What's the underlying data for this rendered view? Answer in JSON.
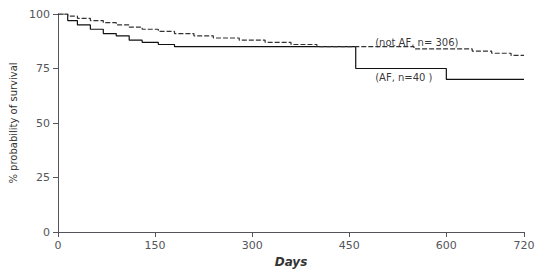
{
  "chart_data": {
    "type": "step",
    "xlabel": "Days",
    "ylabel": "% probability of survival",
    "xlim": [
      0,
      720
    ],
    "ylim": [
      0,
      100
    ],
    "xticks": [
      0,
      150,
      300,
      450,
      600,
      720
    ],
    "yticks": [
      0,
      25,
      50,
      75,
      100
    ],
    "grid": false,
    "series": [
      {
        "color": "#111111",
        "line_style": "solid",
        "x": [
          0,
          15,
          30,
          50,
          70,
          90,
          110,
          130,
          155,
          180,
          210,
          240,
          280,
          320,
          360,
          400,
          430,
          460,
          490,
          500,
          520,
          560,
          600,
          650,
          700,
          720
        ],
        "values": [
          100,
          97,
          95,
          93,
          91,
          90,
          88,
          87,
          86,
          85,
          85,
          85,
          85,
          85,
          85,
          85,
          85,
          75,
          75,
          75,
          75,
          75,
          70,
          70,
          70,
          70
        ]
      },
      {
        "color": "#333333",
        "line_style": "dashed",
        "x": [
          0,
          15,
          30,
          50,
          70,
          90,
          110,
          130,
          155,
          180,
          210,
          240,
          280,
          320,
          360,
          400,
          450,
          500,
          550,
          600,
          640,
          670,
          700,
          720
        ],
        "values": [
          100,
          99,
          98,
          97,
          96,
          95,
          94,
          93,
          92,
          91,
          90,
          89,
          88,
          87,
          86,
          85,
          85,
          85,
          84,
          84,
          83,
          82,
          81,
          81
        ]
      }
    ],
    "annotations": [
      {
        "text": "(not AF, n= 306)",
        "x": 490,
        "y": 87
      },
      {
        "text": "(AF, n=40 )",
        "x": 490,
        "y": 71
      }
    ]
  }
}
